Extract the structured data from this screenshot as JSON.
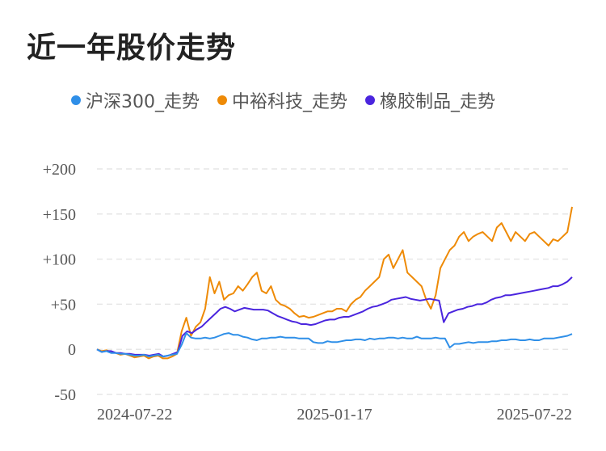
{
  "title": "近一年股价走势",
  "colors": {
    "hs300": "#2f8fe8",
    "zhongyu": "#ee8a06",
    "rubber": "#4a25de",
    "grid": "#e6e6e6"
  },
  "chart_data": {
    "type": "line",
    "x_ticks": [
      "2024-07-22",
      "2025-01-17",
      "2025-07-22"
    ],
    "y_ticks": [
      "+200",
      "+150",
      "+100",
      "+50",
      "0",
      "-50"
    ],
    "ylim": [
      -50,
      200
    ],
    "grid": true,
    "legend_position": "top-left",
    "series": [
      {
        "name": "沪深300_走势",
        "color": "#2f8fe8",
        "values": [
          0,
          -3,
          -2,
          -4,
          -4,
          -5,
          -5,
          -6,
          -7,
          -7,
          -6,
          -8,
          -7,
          -6,
          -8,
          -7,
          -6,
          -5,
          5,
          18,
          13,
          12,
          12,
          13,
          12,
          13,
          15,
          17,
          18,
          16,
          16,
          14,
          13,
          11,
          10,
          12,
          12,
          13,
          13,
          14,
          13,
          13,
          13,
          12,
          12,
          12,
          8,
          7,
          7,
          9,
          8,
          8,
          9,
          10,
          10,
          11,
          11,
          10,
          12,
          11,
          12,
          12,
          13,
          13,
          12,
          13,
          12,
          12,
          14,
          12,
          12,
          12,
          13,
          12,
          12,
          2,
          6,
          6,
          7,
          8,
          7,
          8,
          8,
          8,
          9,
          9,
          10,
          10,
          11,
          11,
          10,
          10,
          11,
          10,
          10,
          12,
          12,
          12,
          13,
          14,
          15,
          17
        ]
      },
      {
        "name": "中裕科技_走势",
        "color": "#ee8a06",
        "values": [
          0,
          -2,
          -1,
          -3,
          -4,
          -6,
          -5,
          -7,
          -9,
          -8,
          -7,
          -10,
          -8,
          -7,
          -10,
          -10,
          -8,
          -5,
          20,
          35,
          15,
          25,
          30,
          45,
          80,
          62,
          75,
          55,
          60,
          62,
          70,
          65,
          72,
          80,
          85,
          65,
          62,
          70,
          55,
          50,
          48,
          45,
          40,
          36,
          37,
          35,
          36,
          38,
          40,
          42,
          42,
          45,
          45,
          42,
          50,
          55,
          58,
          65,
          70,
          75,
          80,
          100,
          105,
          90,
          100,
          110,
          85,
          80,
          75,
          70,
          55,
          45,
          60,
          90,
          100,
          110,
          115,
          125,
          130,
          120,
          125,
          128,
          130,
          125,
          120,
          135,
          140,
          130,
          120,
          130,
          125,
          120,
          128,
          130,
          125,
          120,
          115,
          122,
          120,
          125,
          130,
          158
        ]
      },
      {
        "name": "橡胶制品_走势",
        "color": "#4a25de",
        "values": [
          0,
          -3,
          -2,
          -2,
          -4,
          -4,
          -5,
          -5,
          -6,
          -6,
          -6,
          -7,
          -6,
          -5,
          -8,
          -7,
          -5,
          -3,
          15,
          20,
          18,
          22,
          25,
          30,
          35,
          40,
          45,
          47,
          45,
          42,
          44,
          46,
          45,
          44,
          44,
          44,
          43,
          40,
          37,
          35,
          33,
          31,
          30,
          28,
          28,
          27,
          28,
          30,
          32,
          33,
          33,
          35,
          36,
          36,
          38,
          40,
          42,
          45,
          47,
          48,
          50,
          52,
          55,
          56,
          57,
          58,
          56,
          55,
          54,
          55,
          56,
          55,
          54,
          30,
          40,
          42,
          44,
          45,
          47,
          48,
          50,
          50,
          52,
          55,
          57,
          58,
          60,
          60,
          61,
          62,
          63,
          64,
          65,
          66,
          67,
          68,
          70,
          70,
          72,
          75,
          80
        ]
      }
    ]
  }
}
